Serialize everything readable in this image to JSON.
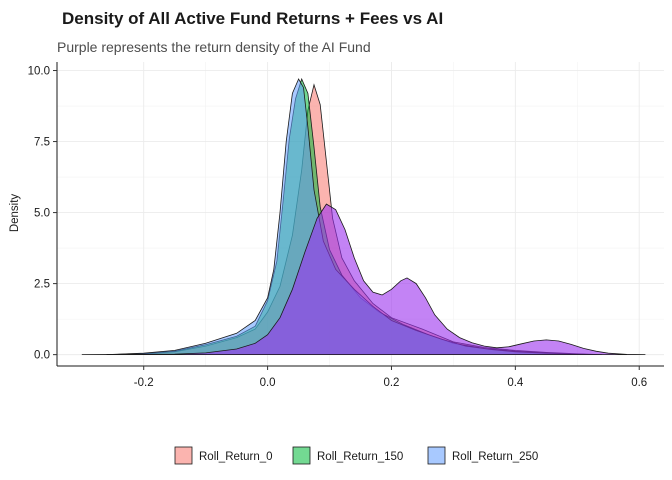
{
  "chart_data": {
    "type": "area",
    "title": "Density of All Active Fund Returns + Fees vs AI",
    "subtitle": "Purple represents the return density of the AI Fund",
    "xlabel": "",
    "ylabel": "Density",
    "xlim": [
      -0.34,
      0.64
    ],
    "ylim": [
      -0.4,
      10.3
    ],
    "xticks": [
      -0.2,
      0.0,
      0.2,
      0.4,
      0.6
    ],
    "xtick_labels": [
      "-0.2",
      "0.0",
      "0.2",
      "0.4",
      "0.6"
    ],
    "yticks": [
      0.0,
      2.5,
      5.0,
      7.5,
      10.0
    ],
    "ytick_labels": [
      "0.0",
      "2.5",
      "5.0",
      "7.5",
      "10.0"
    ],
    "grid": true,
    "legend_position": "bottom",
    "series": [
      {
        "name": "Roll_Return_0",
        "color": "#F8766D",
        "points": [
          [
            -0.26,
            0
          ],
          [
            -0.2,
            0.03
          ],
          [
            -0.15,
            0.1
          ],
          [
            -0.1,
            0.3
          ],
          [
            -0.05,
            0.6
          ],
          [
            -0.02,
            0.9
          ],
          [
            0.0,
            1.5
          ],
          [
            0.02,
            2.4
          ],
          [
            0.04,
            4.2
          ],
          [
            0.055,
            6.5
          ],
          [
            0.065,
            8.6
          ],
          [
            0.075,
            9.5
          ],
          [
            0.085,
            8.8
          ],
          [
            0.095,
            6.8
          ],
          [
            0.105,
            4.8
          ],
          [
            0.12,
            3.4
          ],
          [
            0.14,
            2.6
          ],
          [
            0.17,
            1.8
          ],
          [
            0.2,
            1.3
          ],
          [
            0.25,
            0.9
          ],
          [
            0.3,
            0.45
          ],
          [
            0.35,
            0.25
          ],
          [
            0.4,
            0.15
          ],
          [
            0.45,
            0.08
          ],
          [
            0.5,
            0.03
          ],
          [
            0.54,
            0
          ]
        ]
      },
      {
        "name": "Roll_Return_150",
        "color": "#00BA38",
        "points": [
          [
            -0.26,
            0
          ],
          [
            -0.2,
            0.03
          ],
          [
            -0.15,
            0.12
          ],
          [
            -0.1,
            0.35
          ],
          [
            -0.05,
            0.65
          ],
          [
            -0.02,
            1.0
          ],
          [
            0.0,
            1.9
          ],
          [
            0.015,
            3.3
          ],
          [
            0.025,
            5.4
          ],
          [
            0.035,
            7.6
          ],
          [
            0.045,
            9.0
          ],
          [
            0.055,
            9.7
          ],
          [
            0.065,
            9.2
          ],
          [
            0.075,
            7.3
          ],
          [
            0.085,
            5.2
          ],
          [
            0.1,
            3.7
          ],
          [
            0.12,
            2.8
          ],
          [
            0.15,
            2.0
          ],
          [
            0.18,
            1.5
          ],
          [
            0.22,
            1.05
          ],
          [
            0.26,
            0.7
          ],
          [
            0.3,
            0.4
          ],
          [
            0.35,
            0.22
          ],
          [
            0.4,
            0.12
          ],
          [
            0.45,
            0.06
          ],
          [
            0.5,
            0.02
          ],
          [
            0.53,
            0
          ]
        ]
      },
      {
        "name": "Roll_Return_250",
        "color": "#619CFF",
        "points": [
          [
            -0.26,
            0
          ],
          [
            -0.2,
            0.05
          ],
          [
            -0.15,
            0.15
          ],
          [
            -0.1,
            0.4
          ],
          [
            -0.05,
            0.75
          ],
          [
            -0.02,
            1.2
          ],
          [
            0.0,
            2.0
          ],
          [
            0.01,
            3.0
          ],
          [
            0.02,
            5.0
          ],
          [
            0.03,
            7.5
          ],
          [
            0.04,
            9.2
          ],
          [
            0.05,
            9.7
          ],
          [
            0.058,
            9.4
          ],
          [
            0.065,
            8.0
          ],
          [
            0.075,
            5.8
          ],
          [
            0.09,
            4.0
          ],
          [
            0.11,
            3.0
          ],
          [
            0.14,
            2.3
          ],
          [
            0.17,
            1.7
          ],
          [
            0.2,
            1.2
          ],
          [
            0.24,
            0.85
          ],
          [
            0.28,
            0.55
          ],
          [
            0.32,
            0.3
          ],
          [
            0.36,
            0.18
          ],
          [
            0.4,
            0.1
          ],
          [
            0.45,
            0.05
          ],
          [
            0.5,
            0.02
          ],
          [
            0.53,
            0
          ]
        ]
      },
      {
        "name": "AI Fund",
        "color": "#9B30EE",
        "points": [
          [
            -0.3,
            0
          ],
          [
            -0.2,
            0.01
          ],
          [
            -0.15,
            0.02
          ],
          [
            -0.1,
            0.06
          ],
          [
            -0.05,
            0.2
          ],
          [
            -0.02,
            0.4
          ],
          [
            0.0,
            0.7
          ],
          [
            0.02,
            1.3
          ],
          [
            0.04,
            2.3
          ],
          [
            0.06,
            3.6
          ],
          [
            0.08,
            4.8
          ],
          [
            0.095,
            5.3
          ],
          [
            0.11,
            5.1
          ],
          [
            0.125,
            4.4
          ],
          [
            0.14,
            3.4
          ],
          [
            0.155,
            2.6
          ],
          [
            0.17,
            2.2
          ],
          [
            0.185,
            2.1
          ],
          [
            0.2,
            2.3
          ],
          [
            0.215,
            2.6
          ],
          [
            0.225,
            2.7
          ],
          [
            0.24,
            2.5
          ],
          [
            0.255,
            2.0
          ],
          [
            0.27,
            1.4
          ],
          [
            0.29,
            0.9
          ],
          [
            0.31,
            0.6
          ],
          [
            0.33,
            0.42
          ],
          [
            0.35,
            0.3
          ],
          [
            0.37,
            0.24
          ],
          [
            0.39,
            0.28
          ],
          [
            0.41,
            0.38
          ],
          [
            0.43,
            0.48
          ],
          [
            0.45,
            0.52
          ],
          [
            0.47,
            0.48
          ],
          [
            0.49,
            0.36
          ],
          [
            0.51,
            0.22
          ],
          [
            0.53,
            0.12
          ],
          [
            0.55,
            0.05
          ],
          [
            0.58,
            0.01
          ],
          [
            0.61,
            0
          ]
        ]
      }
    ]
  }
}
